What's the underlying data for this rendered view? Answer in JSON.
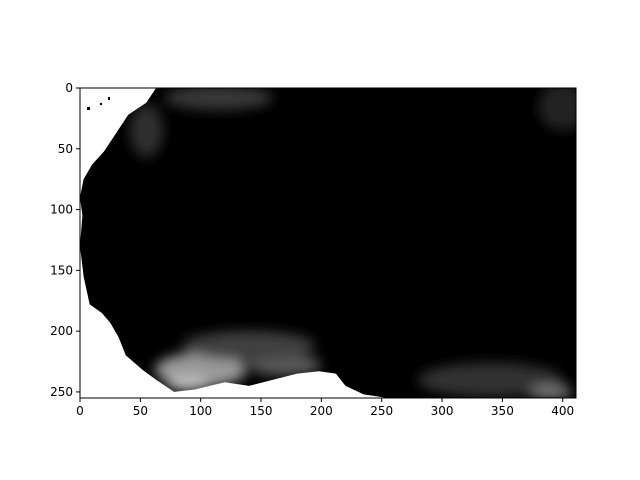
{
  "chart_data": {
    "type": "heatmap",
    "title": "",
    "xlabel": "",
    "ylabel": "",
    "colormap": "gray",
    "background_color": "#ffffff",
    "xlim": [
      0,
      411
    ],
    "ylim": [
      255,
      0
    ],
    "x_ticks": [
      0,
      50,
      100,
      150,
      200,
      250,
      300,
      350,
      400
    ],
    "y_ticks": [
      0,
      50,
      100,
      150,
      200,
      250
    ],
    "grid": false,
    "masked_region_boundary": [
      [
        63,
        0
      ],
      [
        55,
        12
      ],
      [
        40,
        22
      ],
      [
        30,
        37
      ],
      [
        20,
        52
      ],
      [
        10,
        63
      ],
      [
        3,
        75
      ],
      [
        0,
        90
      ],
      [
        2,
        105
      ],
      [
        0,
        130
      ],
      [
        3,
        155
      ],
      [
        8,
        178
      ],
      [
        18,
        185
      ],
      [
        25,
        193
      ],
      [
        32,
        205
      ],
      [
        38,
        220
      ],
      [
        52,
        232
      ],
      [
        63,
        240
      ],
      [
        78,
        250
      ],
      [
        95,
        248
      ],
      [
        120,
        242
      ],
      [
        140,
        245
      ],
      [
        160,
        240
      ],
      [
        180,
        235
      ],
      [
        198,
        233
      ],
      [
        212,
        235
      ],
      [
        220,
        245
      ],
      [
        235,
        252
      ],
      [
        255,
        255
      ]
    ],
    "bright_regions": [
      {
        "x": 100,
        "y": 232,
        "rx": 38,
        "ry": 14,
        "intensity": 0.6
      },
      {
        "x": 170,
        "y": 228,
        "rx": 30,
        "ry": 9,
        "intensity": 0.35
      },
      {
        "x": 90,
        "y": 243,
        "rx": 18,
        "ry": 6,
        "intensity": 0.75
      },
      {
        "x": 140,
        "y": 212,
        "rx": 55,
        "ry": 12,
        "intensity": 0.25
      },
      {
        "x": 340,
        "y": 240,
        "rx": 60,
        "ry": 14,
        "intensity": 0.2
      },
      {
        "x": 390,
        "y": 250,
        "rx": 18,
        "ry": 6,
        "intensity": 0.45
      },
      {
        "x": 115,
        "y": 8,
        "rx": 45,
        "ry": 10,
        "intensity": 0.22
      },
      {
        "x": 55,
        "y": 35,
        "rx": 14,
        "ry": 22,
        "intensity": 0.18
      },
      {
        "x": 400,
        "y": 15,
        "rx": 20,
        "ry": 20,
        "intensity": 0.14
      }
    ]
  }
}
